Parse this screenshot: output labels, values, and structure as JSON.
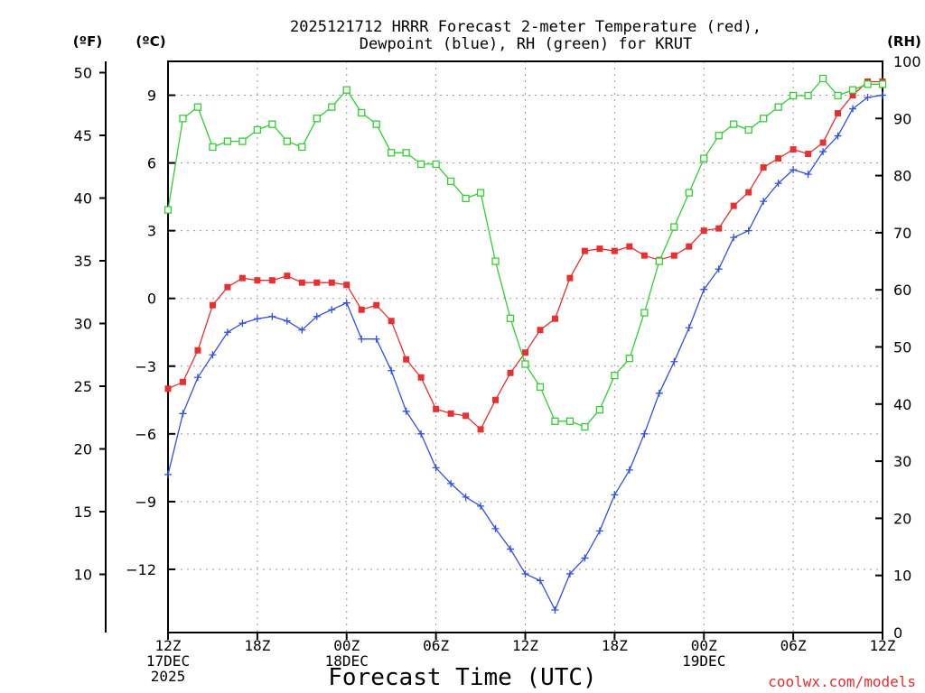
{
  "chart_data": {
    "type": "line",
    "title": [
      "2025121712 HRRR Forecast 2-meter Temperature (red),",
      "Dewpoint (blue), RH (green) for KRUT"
    ],
    "xlabel": "Forecast Time (UTC)",
    "unit_labels": {
      "fahrenheit": "(ºF)",
      "celsius": "(ºC)",
      "rh": "(RH)"
    },
    "credit": "coolwx.com/models",
    "x_range_hours": [
      0,
      48
    ],
    "x_ticks": [
      {
        "h": 0,
        "lines": [
          "12Z",
          "17DEC",
          "2025"
        ]
      },
      {
        "h": 6,
        "lines": [
          "18Z"
        ]
      },
      {
        "h": 12,
        "lines": [
          "00Z",
          "18DEC"
        ]
      },
      {
        "h": 18,
        "lines": [
          "06Z"
        ]
      },
      {
        "h": 24,
        "lines": [
          "12Z"
        ]
      },
      {
        "h": 30,
        "lines": [
          "18Z"
        ]
      },
      {
        "h": 36,
        "lines": [
          "00Z",
          "19DEC"
        ]
      },
      {
        "h": 42,
        "lines": [
          "06Z"
        ]
      },
      {
        "h": 48,
        "lines": [
          "12Z"
        ]
      }
    ],
    "celsius_axis": {
      "range": [
        -14.8,
        10.5
      ],
      "ticks": [
        9,
        6,
        3,
        0,
        -3,
        -6,
        -9,
        -12
      ],
      "tick_labels": [
        "9",
        "6",
        "3",
        "0",
        "−3",
        "−6",
        "−9",
        "−12"
      ]
    },
    "fahrenheit_axis": {
      "ticks": [
        50,
        45,
        40,
        35,
        30,
        25,
        20,
        15,
        10
      ]
    },
    "rh_axis": {
      "range": [
        0,
        100
      ],
      "ticks": [
        100,
        90,
        80,
        70,
        60,
        50,
        40,
        30,
        20,
        10,
        0
      ]
    },
    "series": [
      {
        "name": "2-meter Temperature",
        "axis": "celsius",
        "color": "#e83030",
        "marker": "filled-square",
        "values": [
          -4.0,
          -3.7,
          -2.3,
          -0.3,
          0.5,
          0.9,
          0.8,
          0.8,
          1.0,
          0.7,
          0.7,
          0.7,
          0.6,
          -0.5,
          -0.3,
          -1.0,
          -2.7,
          -3.5,
          -4.9,
          -5.1,
          -5.2,
          -5.8,
          -4.5,
          -3.3,
          -2.4,
          -1.4,
          -0.9,
          0.9,
          2.1,
          2.2,
          2.1,
          2.3,
          1.9,
          1.7,
          1.9,
          2.3,
          3.0,
          3.1,
          4.1,
          4.7,
          5.8,
          6.2,
          6.6,
          6.4,
          6.9,
          8.2,
          9.0,
          9.6,
          9.6
        ]
      },
      {
        "name": "Dewpoint",
        "axis": "celsius",
        "color": "#3050e8",
        "marker": "plus",
        "values": [
          -7.8,
          -5.1,
          -3.5,
          -2.5,
          -1.5,
          -1.1,
          -0.9,
          -0.8,
          -1.0,
          -1.4,
          -0.8,
          -0.5,
          -0.2,
          -1.8,
          -1.8,
          -3.2,
          -5.0,
          -6.0,
          -7.5,
          -8.2,
          -8.8,
          -9.2,
          -10.2,
          -11.1,
          -12.2,
          -12.5,
          -13.8,
          -12.2,
          -11.5,
          -10.3,
          -8.7,
          -7.6,
          -6.0,
          -4.2,
          -2.8,
          -1.3,
          0.4,
          1.3,
          2.7,
          3.0,
          4.3,
          5.1,
          5.7,
          5.5,
          6.5,
          7.2,
          8.4,
          8.9,
          9.0
        ]
      },
      {
        "name": "RH",
        "axis": "rh",
        "color": "#30d030",
        "marker": "open-square",
        "values": [
          74,
          90,
          92,
          85,
          86,
          86,
          88,
          89,
          86,
          85,
          90,
          92,
          95,
          91,
          89,
          84,
          84,
          82,
          82,
          79,
          76,
          77,
          65,
          55,
          47,
          43,
          37,
          37,
          36,
          39,
          45,
          48,
          56,
          65,
          71,
          77,
          83,
          87,
          89,
          88,
          90,
          92,
          94,
          94,
          97,
          94,
          95,
          96,
          96
        ]
      }
    ]
  }
}
